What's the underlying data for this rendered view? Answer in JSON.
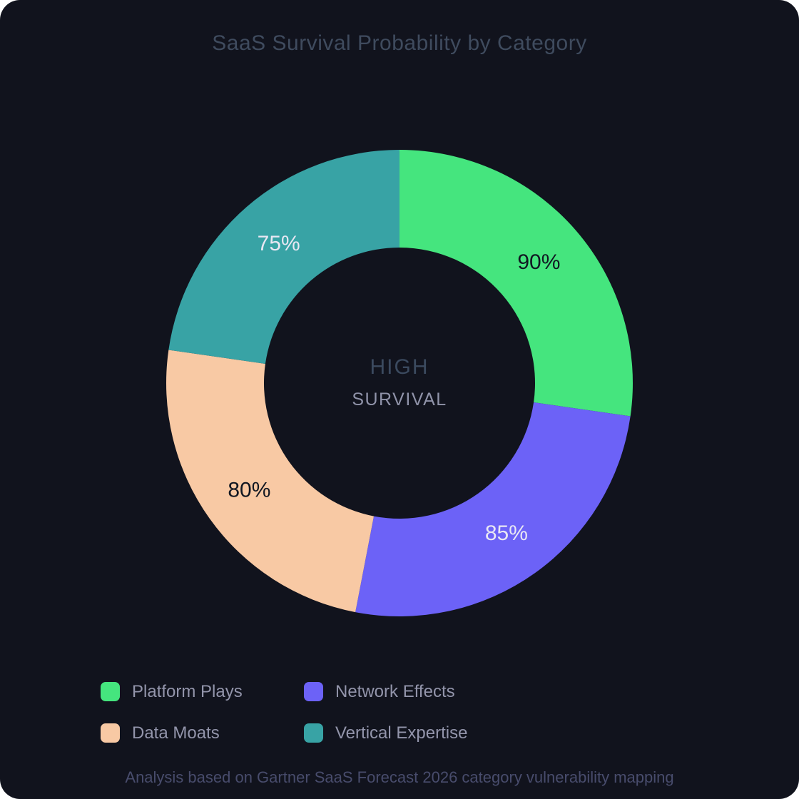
{
  "page": {
    "title": "SaaS Survival Probability by Category",
    "footer": "Analysis based on Gartner SaaS Forecast 2026 category vulnerability mapping",
    "background_color": "#11131d",
    "title_color": "#3f4b5e",
    "footer_color": "#484c6c"
  },
  "center_label": {
    "line1": "HIGH",
    "line2": "SURVIVAL"
  },
  "chart_data": {
    "type": "pie",
    "subtype": "donut",
    "title": "SaaS Survival Probability by Category",
    "direction": "clockwise",
    "start_angle_deg": 0,
    "hole_ratio": 0.58,
    "values_unit": "%",
    "categories": [
      "Platform Plays",
      "Network Effects",
      "Data Moats",
      "Vertical Expertise"
    ],
    "values": [
      90,
      85,
      80,
      75
    ],
    "slices": [
      {
        "label": "Platform Plays",
        "value": 90,
        "display": "90%",
        "color": "#45e57e",
        "label_color": "#111722"
      },
      {
        "label": "Network Effects",
        "value": 85,
        "display": "85%",
        "color": "#6c62f7",
        "label_color": "#e8e7f3"
      },
      {
        "label": "Data Moats",
        "value": 80,
        "display": "80%",
        "color": "#f8c9a4",
        "label_color": "#111722"
      },
      {
        "label": "Vertical Expertise",
        "value": 75,
        "display": "75%",
        "color": "#38a3a5",
        "label_color": "#e8e7f3"
      }
    ],
    "center_text": [
      "HIGH",
      "SURVIVAL"
    ],
    "legend_position": "bottom-left",
    "legend_columns": 2,
    "annotations": []
  }
}
